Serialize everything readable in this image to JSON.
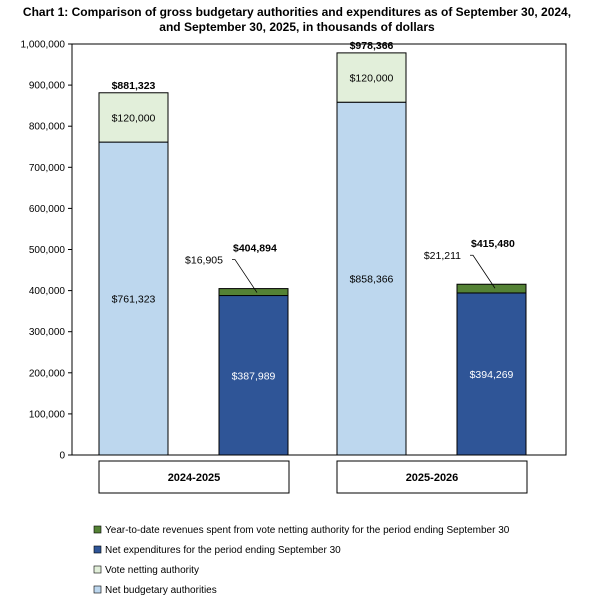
{
  "chart_data": {
    "type": "bar",
    "stacked": true,
    "title_lines": [
      "Chart 1: Comparison of gross budgetary authorities and expenditures as of September 30, 2024,",
      "and September 30, 2025, in thousands of dollars"
    ],
    "ylim": [
      0,
      1000000
    ],
    "yticks": [
      0,
      100000,
      200000,
      300000,
      400000,
      500000,
      600000,
      700000,
      800000,
      900000,
      1000000
    ],
    "ytick_labels": [
      "0",
      "100,000",
      "200,000",
      "300,000",
      "400,000",
      "500,000",
      "600,000",
      "700,000",
      "800,000",
      "900,000",
      "1,000,000"
    ],
    "categories": [
      "2024-2025",
      "2025-2026"
    ],
    "colors": {
      "net_budgetary": "#bdd7ee",
      "vote_netting": "#e2efda",
      "net_expenditures": "#2f5597",
      "ytd_revenues": "#548235",
      "outline": "#000000"
    },
    "bars": [
      {
        "category": "2024-2025",
        "kind": "authorities",
        "segments": [
          {
            "series": "Net budgetary authorities",
            "value": 761323,
            "label": "$761,323"
          },
          {
            "series": "Vote netting authority",
            "value": 120000,
            "label": "$120,000"
          }
        ],
        "total": 881323,
        "total_label": "$881,323"
      },
      {
        "category": "2024-2025",
        "kind": "expenditures",
        "segments": [
          {
            "series": "Net expenditures for the period ending September 30",
            "value": 387989,
            "label": "$387,989"
          },
          {
            "series": "Year-to-date revenues spent from vote netting authority for the period ending September 30",
            "value": 16905,
            "label": "$16,905"
          }
        ],
        "total": 404894,
        "total_label": "$404,894"
      },
      {
        "category": "2025-2026",
        "kind": "authorities",
        "segments": [
          {
            "series": "Net budgetary authorities",
            "value": 858366,
            "label": "$858,366"
          },
          {
            "series": "Vote netting authority",
            "value": 120000,
            "label": "$120,000"
          }
        ],
        "total": 978366,
        "total_label": "$978,366"
      },
      {
        "category": "2025-2026",
        "kind": "expenditures",
        "segments": [
          {
            "series": "Net expenditures for the period ending September 30",
            "value": 394269,
            "label": "$394,269"
          },
          {
            "series": "Year-to-date revenues spent from vote netting authority for the period ending September 30",
            "value": 21211,
            "label": "$21,211"
          }
        ],
        "total": 415480,
        "total_label": "$415,480"
      }
    ],
    "legend": [
      {
        "name": "Year-to-date revenues spent from vote netting authority for the period ending September 30",
        "color_key": "ytd_revenues"
      },
      {
        "name": "Net expenditures for the period ending September 30",
        "color_key": "net_expenditures"
      },
      {
        "name": "Vote netting authority",
        "color_key": "vote_netting"
      },
      {
        "name": "Net budgetary authorities",
        "color_key": "net_budgetary"
      }
    ],
    "legend_position": "bottom-left",
    "grid": false
  }
}
